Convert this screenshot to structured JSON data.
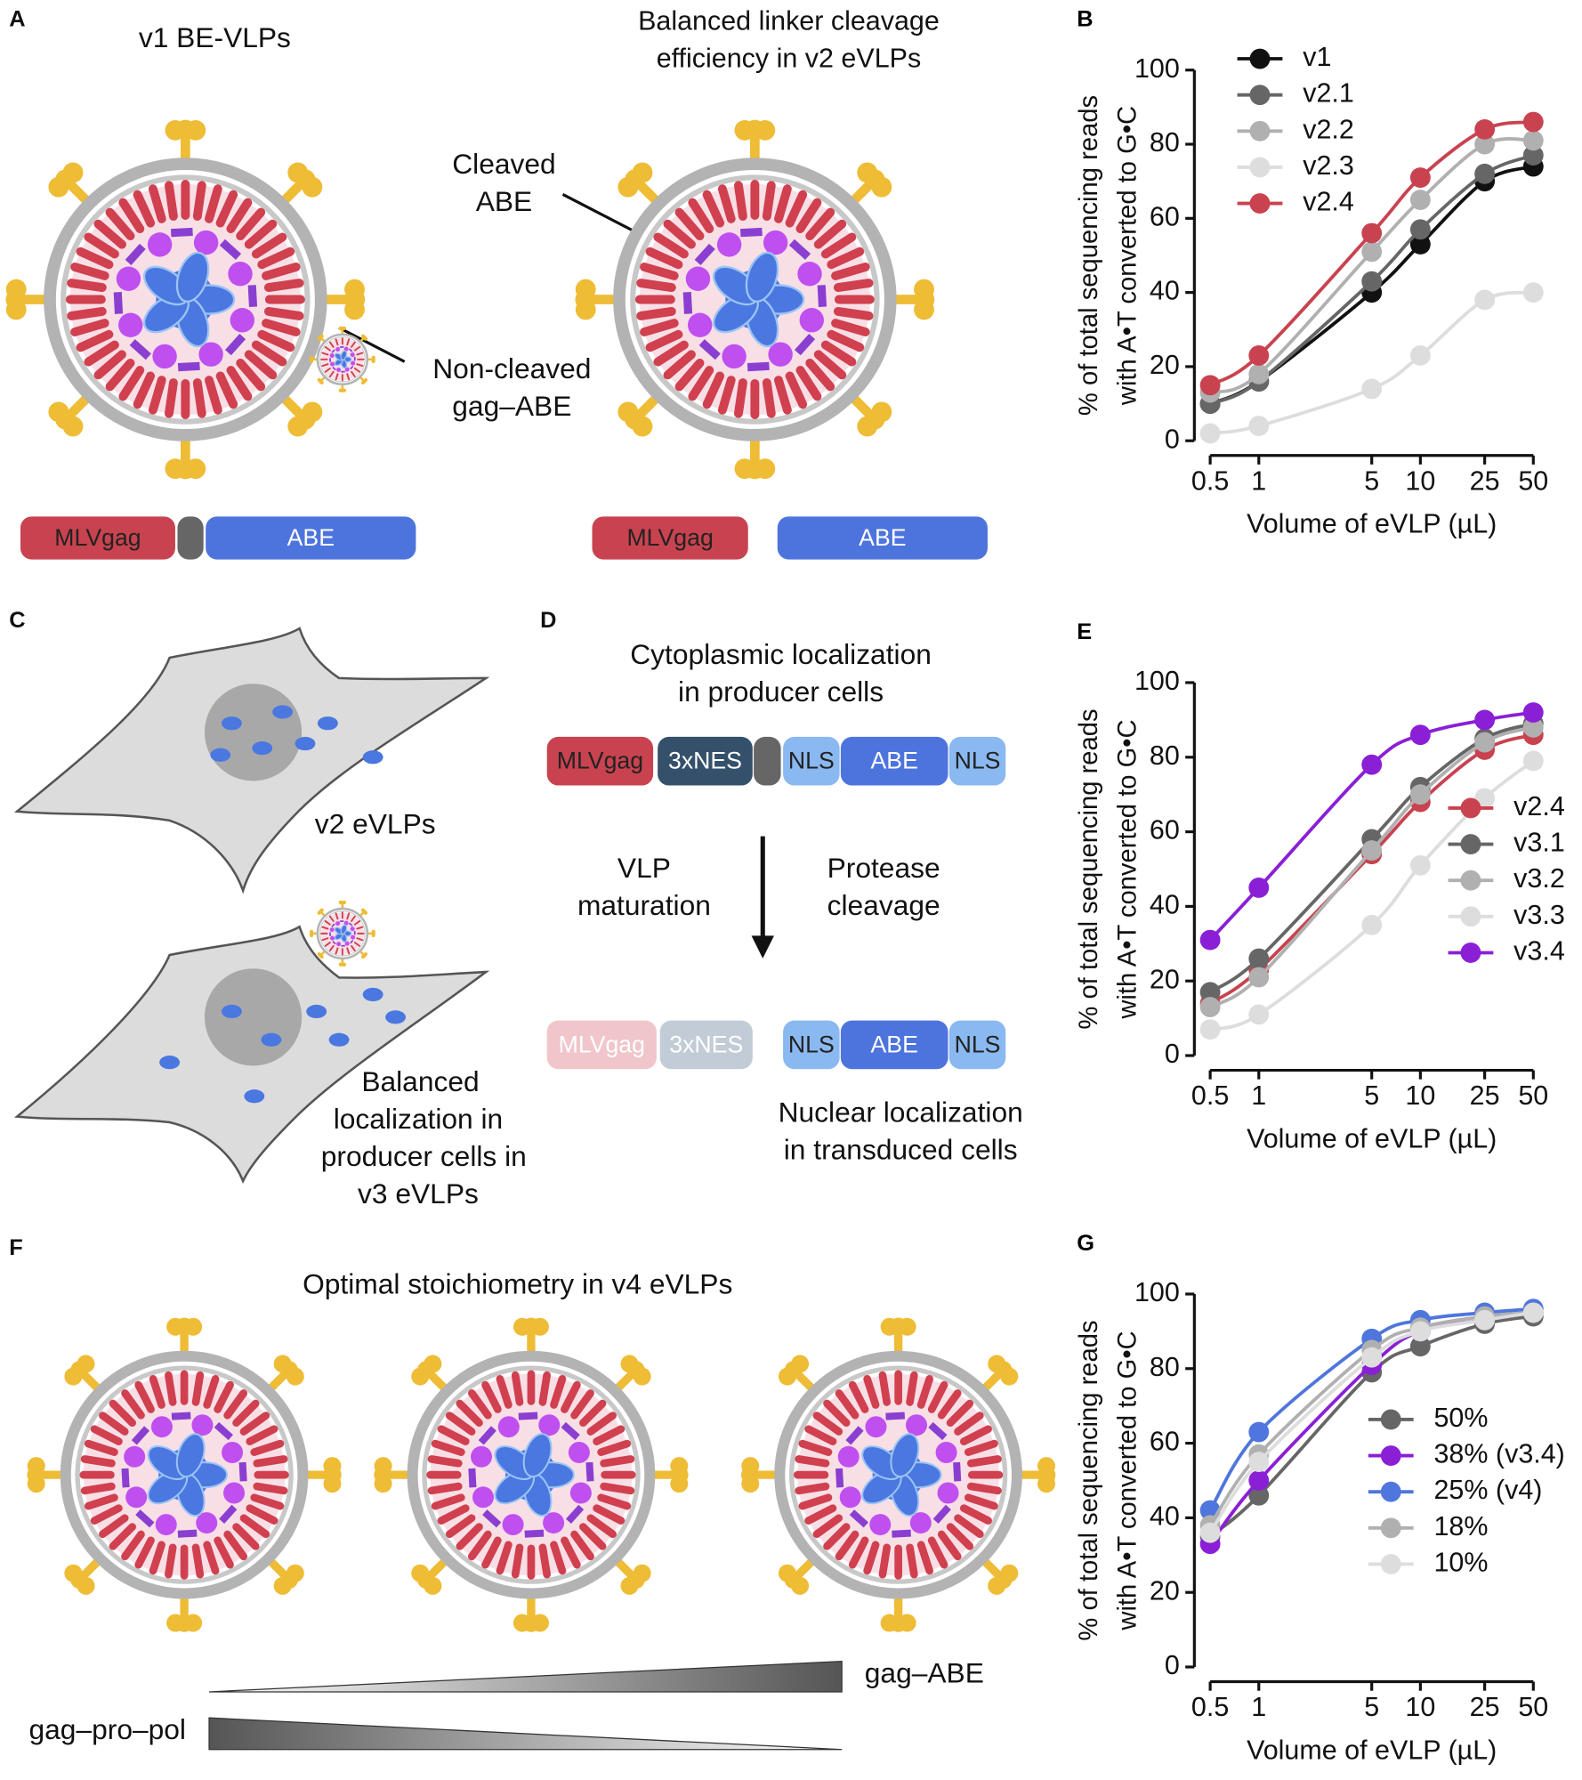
{
  "chart_data": [
    {
      "type": "line",
      "panel": "B",
      "xscale": "log",
      "grid": false,
      "legend": "upper left",
      "ylabel": [
        "% of total sequencing reads",
        "with A•T converted to G•C"
      ],
      "xlabel": "Volume of eVLP (µL)",
      "xlim": [
        0.5,
        50
      ],
      "xticks": [
        0.5,
        1,
        5,
        10,
        25,
        50
      ],
      "ylim": [
        0,
        100
      ],
      "yticks": [
        0,
        20,
        40,
        60,
        80,
        100
      ],
      "x": [
        0.5,
        1,
        5,
        10,
        25,
        50
      ],
      "series": [
        {
          "name": "v1",
          "color": "#111111",
          "values": [
            10,
            16,
            40,
            53,
            70,
            74
          ]
        },
        {
          "name": "v2.1",
          "color": "#666666",
          "values": [
            10,
            16,
            43,
            57,
            72,
            77
          ]
        },
        {
          "name": "v2.2",
          "color": "#b0b0b0",
          "values": [
            13,
            18,
            51,
            65,
            80,
            81
          ]
        },
        {
          "name": "v2.3",
          "color": "#dddddd",
          "values": [
            2,
            4,
            14,
            23,
            38,
            40
          ]
        },
        {
          "name": "v2.4",
          "color": "#c8434f",
          "values": [
            15,
            23,
            56,
            71,
            84,
            86
          ]
        }
      ]
    },
    {
      "type": "line",
      "panel": "E",
      "xscale": "log",
      "grid": false,
      "legend": "center right",
      "ylabel": [
        "% of total sequencing reads",
        "with A•T converted to G•C"
      ],
      "xlabel": "Volume of eVLP (µL)",
      "xlim": [
        0.5,
        50
      ],
      "xticks": [
        0.5,
        1,
        5,
        10,
        25,
        50
      ],
      "ylim": [
        0,
        100
      ],
      "yticks": [
        0,
        20,
        40,
        60,
        80,
        100
      ],
      "x": [
        0.5,
        1,
        5,
        10,
        25,
        50
      ],
      "series": [
        {
          "name": "v2.4",
          "color": "#c8434f",
          "values": [
            14,
            23,
            54,
            68,
            82,
            86
          ]
        },
        {
          "name": "v3.1",
          "color": "#666666",
          "values": [
            17,
            26,
            58,
            72,
            85,
            89
          ]
        },
        {
          "name": "v3.2",
          "color": "#b0b0b0",
          "values": [
            13,
            21,
            55,
            70,
            84,
            88
          ]
        },
        {
          "name": "v3.3",
          "color": "#dddddd",
          "values": [
            7,
            11,
            35,
            51,
            69,
            79
          ]
        },
        {
          "name": "v3.4",
          "color": "#8a1fd6",
          "values": [
            31,
            45,
            78,
            86,
            90,
            92
          ]
        }
      ]
    },
    {
      "type": "line",
      "panel": "G",
      "xscale": "log",
      "grid": false,
      "legend": "center right",
      "ylabel": [
        "% of total sequencing reads",
        "with A•T converted to G•C"
      ],
      "xlabel": "Volume of eVLP (µL)",
      "xlim": [
        0.5,
        50
      ],
      "xticks": [
        0.5,
        1,
        5,
        10,
        25,
        50
      ],
      "ylim": [
        0,
        100
      ],
      "yticks": [
        0,
        20,
        40,
        60,
        80,
        100
      ],
      "x": [
        0.5,
        1,
        5,
        10,
        25,
        50
      ],
      "series": [
        {
          "name": "50%",
          "color": "#666666",
          "values": [
            35,
            46,
            79,
            86,
            92,
            94
          ]
        },
        {
          "name": "38% (v3.4)",
          "color": "#8a1fd6",
          "values": [
            33,
            50,
            81,
            90,
            93,
            95
          ]
        },
        {
          "name": "25% (v4)",
          "color": "#4f76dc",
          "values": [
            42,
            63,
            88,
            93,
            95,
            96
          ]
        },
        {
          "name": "18%",
          "color": "#b0b0b0",
          "values": [
            38,
            57,
            85,
            91,
            94,
            95
          ]
        },
        {
          "name": "10%",
          "color": "#dddddd",
          "values": [
            36,
            55,
            83,
            90,
            93,
            95
          ]
        }
      ]
    }
  ],
  "diagram": {
    "panel_a": {
      "letter": "A",
      "left_title": "v1 BE-VLPs",
      "right_title": [
        "Balanced linker cleavage",
        "efficiency in v2 eVLPs"
      ],
      "cleaved_label": [
        "Cleaved",
        "ABE"
      ],
      "noncleaved_label": [
        "Non-cleaved",
        "gag–ABE"
      ],
      "left_construct": [
        "MLVgag",
        "ABE"
      ],
      "right_construct": [
        "MLVgag",
        "ABE"
      ]
    },
    "panel_c": {
      "letter": "C",
      "top_label": "v2 eVLPs",
      "bottom_label": [
        "Balanced",
        "localization in",
        "producer cells in",
        "v3 eVLPs"
      ]
    },
    "panel_d": {
      "letter": "D",
      "top_title": [
        "Cytoplasmic localization",
        "in producer cells"
      ],
      "top_construct": [
        "MLVgag",
        "3xNES",
        "NLS",
        "ABE",
        "NLS"
      ],
      "left_step": [
        "VLP",
        "maturation"
      ],
      "right_step": [
        "Protease",
        "cleavage"
      ],
      "bottom_construct": [
        "MLVgag",
        "3xNES",
        "NLS",
        "ABE",
        "NLS"
      ],
      "bottom_title": [
        "Nuclear localization",
        "in transduced cells"
      ]
    },
    "panel_f": {
      "letter": "F",
      "title": "Optimal stoichiometry in v4 eVLPs",
      "increasing_label": "gag–ABE",
      "decreasing_label": "gag–pro–pol"
    }
  }
}
